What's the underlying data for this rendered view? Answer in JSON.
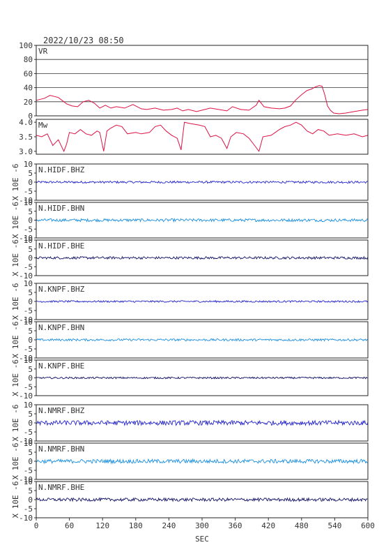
{
  "chart_data": {
    "type": "line",
    "title": "2022/10/23 08:50",
    "xlabel": "SEC",
    "x_range": [
      0,
      600
    ],
    "x_ticks": [
      "0",
      "60",
      "120",
      "180",
      "240",
      "300",
      "360",
      "420",
      "480",
      "540",
      "600"
    ],
    "grid": "horizontal lines on VR panel",
    "panels": [
      {
        "id": "vr",
        "label": "VR",
        "ylabel": "",
        "ylim": [
          0,
          100
        ],
        "y_ticks": [
          "100",
          "80",
          "60",
          "40",
          "20",
          "0"
        ],
        "color": "#dd1144",
        "series_points": [
          [
            0,
            22
          ],
          [
            15,
            25
          ],
          [
            25,
            29
          ],
          [
            40,
            26
          ],
          [
            55,
            17
          ],
          [
            65,
            14
          ],
          [
            75,
            13
          ],
          [
            85,
            20
          ],
          [
            95,
            22
          ],
          [
            105,
            18
          ],
          [
            115,
            11
          ],
          [
            125,
            15
          ],
          [
            135,
            11
          ],
          [
            145,
            13
          ],
          [
            160,
            11
          ],
          [
            175,
            16
          ],
          [
            190,
            10
          ],
          [
            200,
            9
          ],
          [
            215,
            11
          ],
          [
            230,
            8
          ],
          [
            245,
            9
          ],
          [
            255,
            11
          ],
          [
            265,
            7
          ],
          [
            275,
            9
          ],
          [
            290,
            6
          ],
          [
            300,
            8
          ],
          [
            315,
            11
          ],
          [
            330,
            9
          ],
          [
            345,
            7
          ],
          [
            355,
            13
          ],
          [
            370,
            9
          ],
          [
            385,
            8
          ],
          [
            398,
            15
          ],
          [
            403,
            22
          ],
          [
            412,
            13
          ],
          [
            425,
            11
          ],
          [
            440,
            10
          ],
          [
            450,
            11
          ],
          [
            460,
            14
          ],
          [
            470,
            23
          ],
          [
            480,
            30
          ],
          [
            490,
            36
          ],
          [
            498,
            38
          ],
          [
            505,
            41
          ],
          [
            512,
            43
          ],
          [
            517,
            42
          ],
          [
            522,
            30
          ],
          [
            527,
            14
          ],
          [
            532,
            8
          ],
          [
            538,
            4
          ],
          [
            548,
            3
          ],
          [
            560,
            4
          ],
          [
            575,
            6
          ],
          [
            590,
            8
          ],
          [
            600,
            9
          ]
        ]
      },
      {
        "id": "mw",
        "label": "Mw",
        "ylabel": "",
        "ylim": [
          2.9,
          4.1
        ],
        "y_ticks": [
          "4.0",
          "3.5",
          "3.0"
        ],
        "color": "#dd1144",
        "series_points": [
          [
            0,
            3.55
          ],
          [
            10,
            3.5
          ],
          [
            20,
            3.6
          ],
          [
            30,
            3.2
          ],
          [
            40,
            3.4
          ],
          [
            50,
            3.0
          ],
          [
            55,
            3.25
          ],
          [
            60,
            3.65
          ],
          [
            70,
            3.6
          ],
          [
            80,
            3.75
          ],
          [
            90,
            3.6
          ],
          [
            100,
            3.55
          ],
          [
            110,
            3.7
          ],
          [
            115,
            3.65
          ],
          [
            122,
            3.0
          ],
          [
            128,
            3.7
          ],
          [
            135,
            3.8
          ],
          [
            145,
            3.9
          ],
          [
            155,
            3.85
          ],
          [
            165,
            3.6
          ],
          [
            180,
            3.65
          ],
          [
            190,
            3.6
          ],
          [
            205,
            3.65
          ],
          [
            215,
            3.85
          ],
          [
            225,
            3.9
          ],
          [
            235,
            3.7
          ],
          [
            245,
            3.55
          ],
          [
            255,
            3.45
          ],
          [
            262,
            3.05
          ],
          [
            268,
            4.0
          ],
          [
            280,
            3.95
          ],
          [
            295,
            3.9
          ],
          [
            305,
            3.85
          ],
          [
            315,
            3.5
          ],
          [
            325,
            3.55
          ],
          [
            335,
            3.45
          ],
          [
            345,
            3.1
          ],
          [
            352,
            3.5
          ],
          [
            362,
            3.65
          ],
          [
            375,
            3.6
          ],
          [
            385,
            3.45
          ],
          [
            395,
            3.2
          ],
          [
            403,
            3.0
          ],
          [
            410,
            3.5
          ],
          [
            425,
            3.55
          ],
          [
            440,
            3.75
          ],
          [
            450,
            3.85
          ],
          [
            460,
            3.9
          ],
          [
            470,
            4.0
          ],
          [
            480,
            3.9
          ],
          [
            490,
            3.7
          ],
          [
            500,
            3.6
          ],
          [
            510,
            3.75
          ],
          [
            520,
            3.7
          ],
          [
            530,
            3.55
          ],
          [
            545,
            3.6
          ],
          [
            560,
            3.55
          ],
          [
            575,
            3.6
          ],
          [
            590,
            3.5
          ],
          [
            600,
            3.55
          ]
        ]
      },
      {
        "id": "hidf-bhz",
        "label": "N.HIDF.BHZ",
        "ylabel": "X 10E -6",
        "ylim": [
          -10,
          10
        ],
        "y_ticks": [
          "10",
          "5",
          "0",
          "-5",
          "-10"
        ],
        "color": "#2222cc",
        "noise_amplitude": 0.6
      },
      {
        "id": "hidf-bhn",
        "label": "N.HIDF.BHN",
        "ylabel": "X 10E -6",
        "ylim": [
          -10,
          10
        ],
        "y_ticks": [
          "10",
          "5",
          "0",
          "-5",
          "-10"
        ],
        "color": "#1a8fe0",
        "noise_amplitude": 0.8
      },
      {
        "id": "hidf-bhe",
        "label": "N.HIDF.BHE",
        "ylabel": "X 10E -6",
        "ylim": [
          -10,
          10
        ],
        "y_ticks": [
          "10",
          "5",
          "0",
          "-5",
          "-10"
        ],
        "color": "#111166",
        "noise_amplitude": 0.7
      },
      {
        "id": "knpf-bhz",
        "label": "N.KNPF.BHZ",
        "ylabel": "X 10E -6",
        "ylim": [
          -10,
          10
        ],
        "y_ticks": [
          "10",
          "5",
          "0",
          "-5",
          "-10"
        ],
        "color": "#2222cc",
        "noise_amplitude": 0.5
      },
      {
        "id": "knpf-bhn",
        "label": "N.KNPF.BHN",
        "ylabel": "X 10E -6",
        "ylim": [
          -10,
          10
        ],
        "y_ticks": [
          "10",
          "5",
          "0",
          "-5",
          "-10"
        ],
        "color": "#1a8fe0",
        "noise_amplitude": 0.6
      },
      {
        "id": "knpf-bhe",
        "label": "N.KNPF.BHE",
        "ylabel": "X 10E -6",
        "ylim": [
          -10,
          10
        ],
        "y_ticks": [
          "10",
          "5",
          "0",
          "-5",
          "-10"
        ],
        "color": "#111166",
        "noise_amplitude": 0.5
      },
      {
        "id": "nmrf-bhz",
        "label": "N.NMRF.BHZ",
        "ylabel": "X 10E -6",
        "ylim": [
          -10,
          10
        ],
        "y_ticks": [
          "10",
          "5",
          "0",
          "-5",
          "-10"
        ],
        "color": "#2222cc",
        "noise_amplitude": 1.3
      },
      {
        "id": "nmrf-bhn",
        "label": "N.NMRF.BHN",
        "ylabel": "X 10E -6",
        "ylim": [
          -10,
          10
        ],
        "y_ticks": [
          "10",
          "5",
          "0",
          "-5",
          "-10"
        ],
        "color": "#1a8fe0",
        "noise_amplitude": 1.1
      },
      {
        "id": "nmrf-bhe",
        "label": "N.NMRF.BHE",
        "ylabel": "X 10E -6",
        "ylim": [
          -10,
          10
        ],
        "y_ticks": [
          "10",
          "5",
          "0",
          "-5",
          "-10"
        ],
        "color": "#111166",
        "noise_amplitude": 0.9
      }
    ]
  }
}
